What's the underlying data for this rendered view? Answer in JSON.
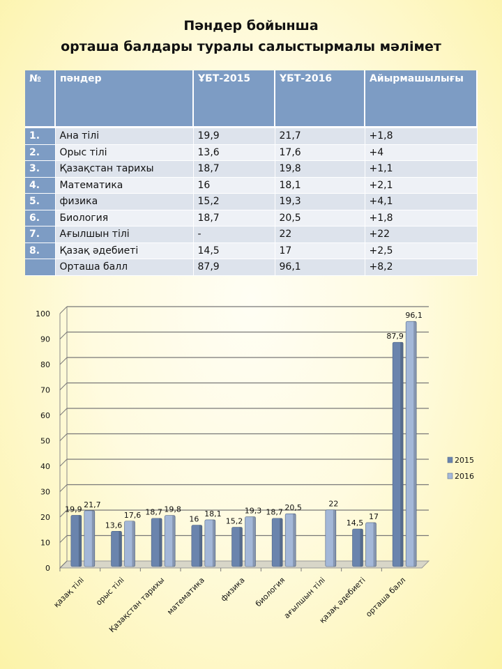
{
  "title": {
    "line1": "Пәндер бойынша",
    "line2": "орташа балдары туралы салыстырмалы мәлімет"
  },
  "table": {
    "headers": [
      "№",
      "пәндер",
      "ҰБТ-2015",
      "ҰБТ-2016",
      "Айырмашылығы"
    ],
    "rows": [
      [
        "1.",
        "Ана тілі",
        "19,9",
        "21,7",
        "+1,8"
      ],
      [
        "2.",
        "Орыс тілі",
        "13,6",
        "17,6",
        "+4"
      ],
      [
        "3.",
        "Қазақстан тарихы",
        "18,7",
        "19,8",
        "+1,1"
      ],
      [
        "4.",
        "Математика",
        "16",
        "18,1",
        "+2,1"
      ],
      [
        "5.",
        "физика",
        "15,2",
        "19,3",
        "+4,1"
      ],
      [
        "6.",
        "Биология",
        "18,7",
        "20,5",
        "+1,8"
      ],
      [
        "7.",
        "Ағылшын тілі",
        "-",
        "22",
        "+22"
      ],
      [
        "8.",
        "Қазақ әдебиеті",
        "14,5",
        "17",
        "+2,5"
      ],
      [
        "",
        "Орташа балл",
        "87,9",
        "96,1",
        "+8,2"
      ]
    ]
  },
  "chart_data": {
    "type": "bar",
    "categories": [
      "қазақ тілі",
      "орыс тілі",
      "Қазақстан тарихы",
      "математика",
      "физика",
      "биология",
      "ағылшын тілі",
      "қазақ әдебиеті",
      "орташа балл"
    ],
    "series": [
      {
        "name": "2015",
        "values": [
          19.9,
          13.6,
          18.7,
          16,
          15.2,
          18.7,
          null,
          14.5,
          87.9
        ],
        "labels": [
          "19,9",
          "13,6",
          "18,7",
          "16",
          "15,2",
          "18,7",
          "",
          "14,5",
          "87,9"
        ],
        "color": "#6a84ad"
      },
      {
        "name": "2016",
        "values": [
          21.7,
          17.6,
          19.8,
          18.1,
          19.3,
          20.5,
          22,
          17,
          96.1
        ],
        "labels": [
          "21,7",
          "17,6",
          "19,8",
          "18,1",
          "19,3",
          "20,5",
          "22",
          "17",
          "96,1"
        ],
        "color": "#a4b8d8"
      }
    ],
    "yticks": [
      "0",
      "10",
      "20",
      "30",
      "40",
      "50",
      "60",
      "70",
      "80",
      "90",
      "100"
    ],
    "ylim": [
      0,
      100
    ],
    "grid": true,
    "legend": "right"
  }
}
